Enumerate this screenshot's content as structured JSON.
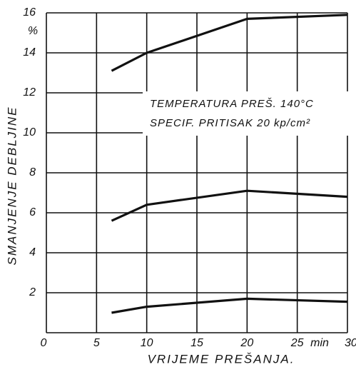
{
  "chart_data": {
    "type": "line",
    "ylabel": "SMANJENJE DEBLJINE",
    "y_unit": "%",
    "xlabel": "VRIJEME PREŠANJA.",
    "x_unit": "min",
    "annotations": [
      "TEMPERATURA PREŠ. 140°C",
      "SPECIF. PRITISAK 20 kp/cm²"
    ],
    "x": [
      6.5,
      10,
      20,
      30
    ],
    "series": [
      {
        "color": "#111111",
        "values": [
          13.1,
          14.0,
          15.7,
          15.9
        ]
      },
      {
        "color": "#111111",
        "values": [
          5.6,
          6.4,
          7.1,
          6.8
        ]
      },
      {
        "color": "#111111",
        "values": [
          1.0,
          1.3,
          1.7,
          1.55
        ]
      }
    ],
    "xlim": [
      0,
      30
    ],
    "xticks": [
      0,
      5,
      10,
      15,
      20,
      25,
      30
    ],
    "ylim": [
      0,
      16
    ],
    "yticks": [
      2,
      4,
      6,
      8,
      10,
      12,
      14,
      16
    ],
    "grid": true
  }
}
